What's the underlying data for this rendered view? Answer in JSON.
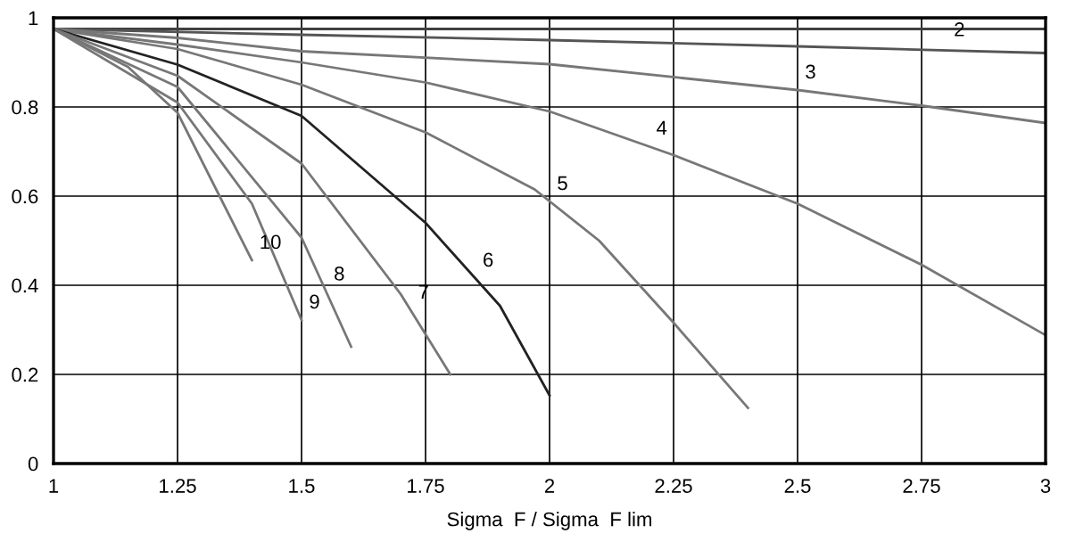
{
  "chart_data": {
    "type": "line",
    "xlabel": "Sigma  F / Sigma  F lim",
    "xlim": [
      1,
      3
    ],
    "ylim": [
      0,
      1
    ],
    "xticks": [
      1,
      1.25,
      1.5,
      1.75,
      2,
      2.25,
      2.5,
      2.75,
      3
    ],
    "yticks": [
      0,
      0.2,
      0.4,
      0.6,
      0.8,
      1
    ],
    "grid": true,
    "marker": "none",
    "line_style": "solid",
    "series": [
      {
        "color": "#404040",
        "x": [
          1,
          3
        ],
        "values": [
          0.975,
          0.975
        ]
      },
      {
        "color": "#555555",
        "x": [
          1,
          1.5,
          2,
          2.5,
          3
        ],
        "values": [
          0.975,
          0.962,
          0.95,
          0.936,
          0.921
        ]
      },
      {
        "color": "#777777",
        "x": [
          1,
          1.25,
          1.5,
          2,
          2.5,
          2.75,
          3
        ],
        "values": [
          0.975,
          0.955,
          0.925,
          0.896,
          0.838,
          0.803,
          0.764
        ]
      },
      {
        "color": "#777777",
        "x": [
          1,
          1.25,
          1.5,
          1.75,
          2,
          2.25,
          2.5,
          2.75,
          3
        ],
        "values": [
          0.975,
          0.94,
          0.9,
          0.855,
          0.79,
          0.692,
          0.583,
          0.446,
          0.288
        ]
      },
      {
        "color": "#777777",
        "x": [
          1,
          1.25,
          1.5,
          1.75,
          1.97,
          2.1,
          2.25,
          2.4
        ],
        "values": [
          0.975,
          0.93,
          0.85,
          0.743,
          0.615,
          0.5,
          0.316,
          0.125
        ]
      },
      {
        "color": "#222222",
        "x": [
          1,
          1.25,
          1.5,
          1.75,
          1.9,
          2
        ],
        "values": [
          0.975,
          0.895,
          0.78,
          0.54,
          0.354,
          0.153
        ]
      },
      {
        "color": "#777777",
        "x": [
          1,
          1.25,
          1.5,
          1.7,
          1.8
        ],
        "values": [
          0.975,
          0.87,
          0.673,
          0.38,
          0.2
        ]
      },
      {
        "color": "#777777",
        "x": [
          1,
          1.25,
          1.5,
          1.6
        ],
        "values": [
          0.975,
          0.845,
          0.507,
          0.262
        ]
      },
      {
        "color": "#777777",
        "x": [
          1,
          1.25,
          1.4,
          1.5
        ],
        "values": [
          0.975,
          0.81,
          0.583,
          0.322
        ]
      },
      {
        "color": "#777777",
        "x": [
          1,
          1.15,
          1.25,
          1.4
        ],
        "values": [
          0.975,
          0.89,
          0.787,
          0.456
        ]
      }
    ],
    "annotations": [
      {
        "text": "2",
        "x": 2.8,
        "y": 0.933
      },
      {
        "text": "3",
        "x": 2.5,
        "y": 0.838
      },
      {
        "text": "4",
        "x": 2.2,
        "y": 0.712
      },
      {
        "text": "5",
        "x": 2.0,
        "y": 0.588
      },
      {
        "text": "6",
        "x": 1.85,
        "y": 0.416
      },
      {
        "text": "7",
        "x": 1.72,
        "y": 0.344
      },
      {
        "text": "8",
        "x": 1.55,
        "y": 0.385
      },
      {
        "text": "9",
        "x": 1.5,
        "y": 0.322
      },
      {
        "text": "10",
        "x": 1.4,
        "y": 0.456
      }
    ]
  }
}
